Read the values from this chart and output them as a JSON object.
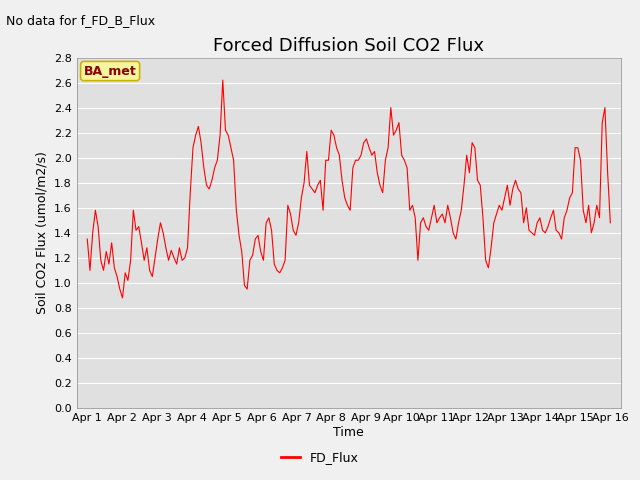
{
  "title": "Forced Diffusion Soil CO2 Flux",
  "no_data_text": "No data for f_FD_B_Flux",
  "ylabel": "Soil CO2 Flux (umol/m2/s)",
  "xlabel": "Time",
  "legend_label": "FD_Flux",
  "line_color": "red",
  "ylim": [
    0.0,
    2.8
  ],
  "yticks": [
    0.0,
    0.2,
    0.4,
    0.6,
    0.8,
    1.0,
    1.2,
    1.4,
    1.6,
    1.8,
    2.0,
    2.2,
    2.4,
    2.6,
    2.8
  ],
  "xtick_labels": [
    "Apr 1",
    "Apr 2",
    "Apr 3",
    "Apr 4",
    "Apr 5",
    "Apr 6",
    "Apr 7",
    "Apr 8",
    "Apr 9",
    "Apr 10",
    "Apr 11",
    "Apr 12",
    "Apr 13",
    "Apr 14",
    "Apr 15",
    "Apr 16"
  ],
  "fig_bg_color": "#f0f0f0",
  "plot_bg_color": "#e0e0e0",
  "grid_color": "#ffffff",
  "annotation_text": "BA_met",
  "annotation_bg": "#f5f5a0",
  "annotation_border": "#c8b400",
  "title_fontsize": 13,
  "axis_fontsize": 9,
  "tick_fontsize": 8,
  "legend_fontsize": 9,
  "no_data_fontsize": 9,
  "values": [
    1.35,
    1.1,
    1.4,
    1.58,
    1.45,
    1.18,
    1.1,
    1.25,
    1.15,
    1.32,
    1.12,
    1.05,
    0.95,
    0.88,
    1.08,
    1.02,
    1.18,
    1.58,
    1.42,
    1.45,
    1.32,
    1.18,
    1.28,
    1.1,
    1.05,
    1.2,
    1.35,
    1.48,
    1.4,
    1.28,
    1.18,
    1.26,
    1.2,
    1.15,
    1.28,
    1.18,
    1.2,
    1.28,
    1.72,
    2.08,
    2.18,
    2.25,
    2.12,
    1.92,
    1.78,
    1.75,
    1.82,
    1.92,
    1.98,
    2.18,
    2.62,
    2.22,
    2.18,
    2.08,
    1.98,
    1.58,
    1.38,
    1.25,
    0.98,
    0.95,
    1.18,
    1.22,
    1.35,
    1.38,
    1.25,
    1.18,
    1.48,
    1.52,
    1.42,
    1.15,
    1.1,
    1.08,
    1.12,
    1.18,
    1.62,
    1.55,
    1.42,
    1.38,
    1.48,
    1.68,
    1.8,
    2.05,
    1.78,
    1.75,
    1.72,
    1.78,
    1.82,
    1.58,
    1.98,
    1.98,
    2.22,
    2.18,
    2.08,
    2.02,
    1.82,
    1.68,
    1.62,
    1.58,
    1.92,
    1.98,
    1.98,
    2.02,
    2.12,
    2.15,
    2.08,
    2.02,
    2.05,
    1.88,
    1.78,
    1.72,
    1.98,
    2.08,
    2.4,
    2.18,
    2.22,
    2.28,
    2.02,
    1.98,
    1.92,
    1.58,
    1.62,
    1.52,
    1.18,
    1.48,
    1.52,
    1.45,
    1.42,
    1.52,
    1.62,
    1.48,
    1.52,
    1.55,
    1.48,
    1.62,
    1.52,
    1.4,
    1.35,
    1.48,
    1.58,
    1.78,
    2.02,
    1.88,
    2.12,
    2.08,
    1.82,
    1.78,
    1.52,
    1.18,
    1.12,
    1.28,
    1.48,
    1.55,
    1.62,
    1.58,
    1.68,
    1.78,
    1.62,
    1.75,
    1.82,
    1.75,
    1.72,
    1.48,
    1.6,
    1.42,
    1.4,
    1.38,
    1.48,
    1.52,
    1.42,
    1.4,
    1.45,
    1.52,
    1.58,
    1.42,
    1.4,
    1.35,
    1.52,
    1.58,
    1.68,
    1.72,
    2.08,
    2.08,
    1.98,
    1.58,
    1.48,
    1.62,
    1.4,
    1.48,
    1.62,
    1.52,
    2.28,
    2.4,
    1.88,
    1.48
  ]
}
